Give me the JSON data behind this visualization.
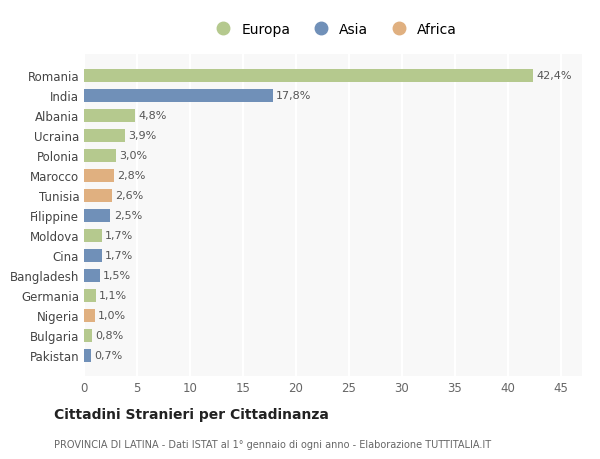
{
  "categories": [
    "Romania",
    "India",
    "Albania",
    "Ucraina",
    "Polonia",
    "Marocco",
    "Tunisia",
    "Filippine",
    "Moldova",
    "Cina",
    "Bangladesh",
    "Germania",
    "Nigeria",
    "Bulgaria",
    "Pakistan"
  ],
  "values": [
    42.4,
    17.8,
    4.8,
    3.9,
    3.0,
    2.8,
    2.6,
    2.5,
    1.7,
    1.7,
    1.5,
    1.1,
    1.0,
    0.8,
    0.7
  ],
  "labels": [
    "42,4%",
    "17,8%",
    "4,8%",
    "3,9%",
    "3,0%",
    "2,8%",
    "2,6%",
    "2,5%",
    "1,7%",
    "1,7%",
    "1,5%",
    "1,1%",
    "1,0%",
    "0,8%",
    "0,7%"
  ],
  "continents": [
    "Europa",
    "Asia",
    "Europa",
    "Europa",
    "Europa",
    "Africa",
    "Africa",
    "Asia",
    "Europa",
    "Asia",
    "Asia",
    "Europa",
    "Africa",
    "Europa",
    "Asia"
  ],
  "colors": {
    "Europa": "#b5c98e",
    "Asia": "#7090b8",
    "Africa": "#e0b080"
  },
  "background_color": "#ffffff",
  "plot_bg_color": "#f8f8f8",
  "grid_color": "#e0e0e0",
  "title": "Cittadini Stranieri per Cittadinanza",
  "subtitle": "PROVINCIA DI LATINA - Dati ISTAT al 1° gennaio di ogni anno - Elaborazione TUTTITALIA.IT",
  "xlim": [
    0,
    47
  ],
  "xticks": [
    0,
    5,
    10,
    15,
    20,
    25,
    30,
    35,
    40,
    45
  ]
}
